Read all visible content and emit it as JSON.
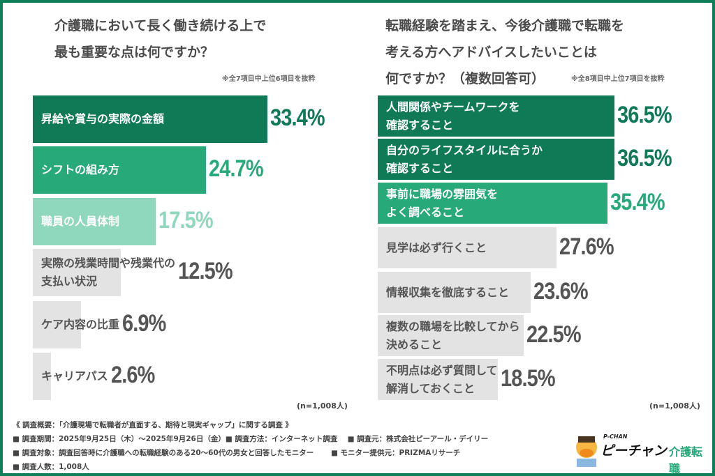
{
  "chart_data": [
    {
      "type": "bar",
      "orientation": "horizontal",
      "title": "介護職において長く働き続ける上で\n最も重要な点は何ですか？",
      "note": "※全7項目中上位6項目を抜粋",
      "sample": "(n=1,008人)",
      "categories": [
        "昇給や賞与の実際の金額",
        "シフトの組み方",
        "職員の人員体制",
        "実際の残業時間や残業代の\n支払い状況",
        "ケア内容の比重",
        "キャリアパス"
      ],
      "values": [
        33.4,
        24.7,
        17.5,
        12.5,
        6.9,
        2.6
      ],
      "colors": [
        "#0f7a55",
        "#27a97a",
        "#8fd8bd",
        "#e3e3e3",
        "#e3e3e3",
        "#e3e3e3"
      ],
      "value_labels": [
        "33.4%",
        "24.7%",
        "17.5%",
        "12.5%",
        "6.9%",
        "2.6%"
      ]
    },
    {
      "type": "bar",
      "orientation": "horizontal",
      "title": "転職経験を踏まえ、今後介護職で転職を\n考える方へアドバイスしたいことは\n何ですか？（複数回答可）",
      "note": "※全8項目中上位7項目を抜粋",
      "sample": "(n=1,008人)",
      "categories": [
        "人間関係やチームワークを\n確認すること",
        "自分のライフスタイルに合うか\n確認すること",
        "事前に職場の雰囲気を\nよく調べること",
        "見学は必ず行くこと",
        "情報収集を徹底すること",
        "複数の職場を比較してから\n決めること",
        "不明点は必ず質問して\n解消しておくこと"
      ],
      "values": [
        36.5,
        36.5,
        35.4,
        27.6,
        23.6,
        22.5,
        18.5
      ],
      "colors": [
        "#0f7a55",
        "#0f7a55",
        "#27a97a",
        "#e3e3e3",
        "#e3e3e3",
        "#e3e3e3",
        "#e3e3e3"
      ],
      "value_labels": [
        "36.5%",
        "36.5%",
        "35.4%",
        "27.6%",
        "23.6%",
        "22.5%",
        "18.5%"
      ]
    }
  ],
  "footer": {
    "lines": [
      "《 調査概要：「介護現場で転職者が直面する、期待と現実ギャップ」に関する調査 》",
      "■ 調査期間：2025年9月25日（木）～2025年9月26日（金）■ 調査方法：インターネット調査　 ■ 調査元：株式会社ピーアール・デイリー",
      "■ 調査対象：調査回答時に介護職への転職経験のある20～60代の男女と回答したモニター　　 ■ モニター提供元：PRIZMAリサーチ",
      "■ 調査人数：1,008人"
    ]
  },
  "logo": {
    "small": "P-CHAN",
    "main": "ピーチャン",
    "sub": "介護転職"
  }
}
